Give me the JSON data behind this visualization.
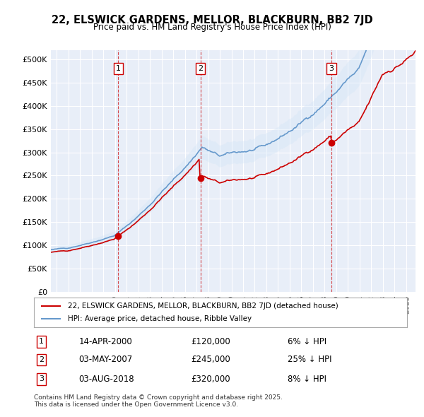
{
  "title": "22, ELSWICK GARDENS, MELLOR, BLACKBURN, BB2 7JD",
  "subtitle": "Price paid vs. HM Land Registry's House Price Index (HPI)",
  "legend_red": "22, ELSWICK GARDENS, MELLOR, BLACKBURN, BB2 7JD (detached house)",
  "legend_blue": "HPI: Average price, detached house, Ribble Valley",
  "footer": "Contains HM Land Registry data © Crown copyright and database right 2025.\nThis data is licensed under the Open Government Licence v3.0.",
  "sales": [
    {
      "num": 1,
      "date": "14-APR-2000",
      "price": 120000,
      "pct": "6%",
      "year": 2000.29
    },
    {
      "num": 2,
      "date": "03-MAY-2007",
      "price": 245000,
      "pct": "25%",
      "year": 2007.33
    },
    {
      "num": 3,
      "date": "03-AUG-2018",
      "price": 320000,
      "pct": "8%",
      "year": 2018.58
    }
  ],
  "ylim": [
    0,
    520000
  ],
  "yticks": [
    0,
    50000,
    100000,
    150000,
    200000,
    250000,
    300000,
    350000,
    400000,
    450000,
    500000
  ],
  "xlim_start": 1994.5,
  "xlim_end": 2025.8,
  "red_color": "#cc0000",
  "blue_color": "#6699cc",
  "blue_fill": "#d0e4f7",
  "bg_color": "#f0f4ff",
  "plot_bg": "#e8eef8"
}
